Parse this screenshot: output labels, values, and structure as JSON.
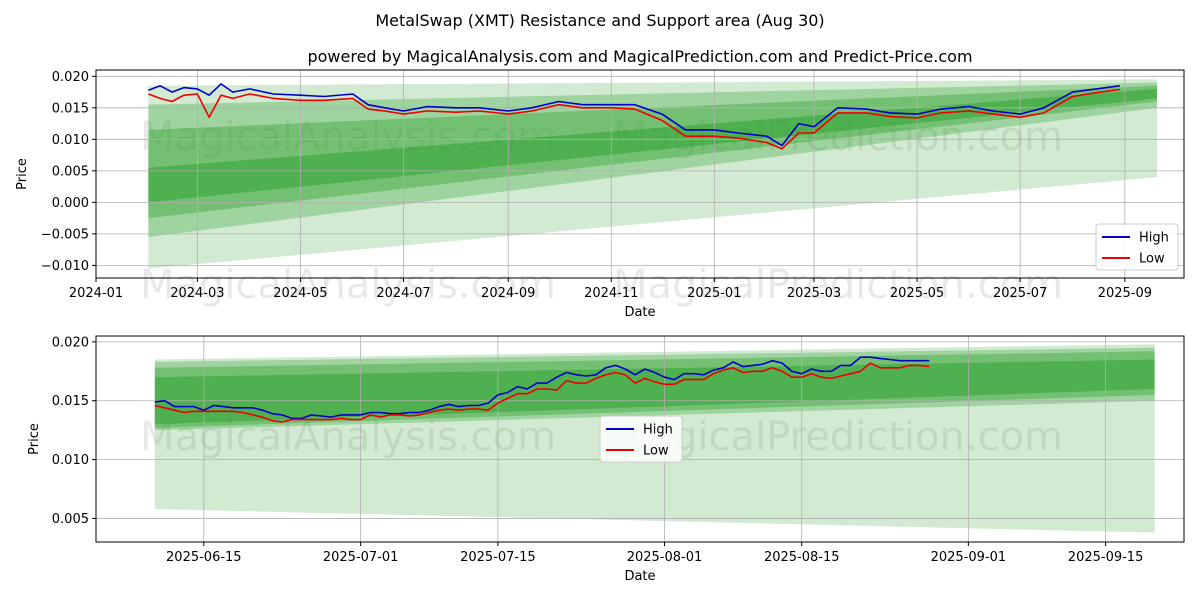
{
  "title": "MetalSwap (XMT) Resistance and Support area (Aug 30)",
  "subtitle": "powered by MagicalAnalysis.com and MagicalPrediction.com and Predict-Price.com",
  "watermarks": [
    "MagicalAnalysis.com",
    "MagicalPrediction.com"
  ],
  "colors": {
    "high": "#0000cc",
    "low": "#ee0000",
    "band": "#2ca02c",
    "grid": "#b0b0b0"
  },
  "chart_data": [
    {
      "type": "line",
      "xlabel": "Date",
      "ylabel": "Price",
      "ylim": [
        -0.012,
        0.021
      ],
      "xlim": [
        "2024-01-01",
        "2025-10-06"
      ],
      "yticks": [
        -0.01,
        -0.005,
        0.0,
        0.005,
        0.01,
        0.015,
        0.02
      ],
      "ytick_labels": [
        "−0.010",
        "−0.005",
        "0.000",
        "0.005",
        "0.010",
        "0.015",
        "0.020"
      ],
      "xticks": [
        "2024-01-01",
        "2024-03-01",
        "2024-05-01",
        "2024-07-01",
        "2024-09-01",
        "2024-11-01",
        "2025-01-01",
        "2025-03-01",
        "2025-05-01",
        "2025-07-01",
        "2025-09-01"
      ],
      "xtick_labels": [
        "2024-01",
        "2024-03",
        "2024-05",
        "2024-07",
        "2024-09",
        "2024-11",
        "2025-01",
        "2025-03",
        "2025-05",
        "2025-07",
        "2025-09"
      ],
      "grid": true,
      "legend": "lower right",
      "series": [
        {
          "name": "High",
          "x": [
            "2024-02-01",
            "2024-02-08",
            "2024-02-15",
            "2024-02-22",
            "2024-03-01",
            "2024-03-08",
            "2024-03-15",
            "2024-03-22",
            "2024-04-01",
            "2024-04-15",
            "2024-05-01",
            "2024-05-15",
            "2024-06-01",
            "2024-06-10",
            "2024-06-20",
            "2024-07-01",
            "2024-07-15",
            "2024-08-01",
            "2024-08-15",
            "2024-09-01",
            "2024-09-15",
            "2024-10-01",
            "2024-10-15",
            "2024-11-01",
            "2024-11-15",
            "2024-12-01",
            "2024-12-15",
            "2025-01-01",
            "2025-01-15",
            "2025-02-01",
            "2025-02-10",
            "2025-02-20",
            "2025-03-01",
            "2025-03-15",
            "2025-04-01",
            "2025-04-15",
            "2025-05-01",
            "2025-05-15",
            "2025-06-01",
            "2025-06-15",
            "2025-07-01",
            "2025-07-15",
            "2025-08-01",
            "2025-08-15",
            "2025-08-29"
          ],
          "values": [
            0.0178,
            0.0185,
            0.0175,
            0.0182,
            0.018,
            0.017,
            0.0188,
            0.0175,
            0.018,
            0.0172,
            0.017,
            0.0168,
            0.0172,
            0.0155,
            0.015,
            0.0145,
            0.0152,
            0.015,
            0.015,
            0.0145,
            0.015,
            0.016,
            0.0155,
            0.0155,
            0.0155,
            0.014,
            0.0115,
            0.0115,
            0.011,
            0.0105,
            0.009,
            0.0125,
            0.012,
            0.015,
            0.0148,
            0.0142,
            0.014,
            0.0148,
            0.0152,
            0.0145,
            0.014,
            0.015,
            0.0175,
            0.018,
            0.0185
          ]
        },
        {
          "name": "Low",
          "x": [
            "2024-02-01",
            "2024-02-08",
            "2024-02-15",
            "2024-02-22",
            "2024-03-01",
            "2024-03-08",
            "2024-03-15",
            "2024-03-22",
            "2024-04-01",
            "2024-04-15",
            "2024-05-01",
            "2024-05-15",
            "2024-06-01",
            "2024-06-10",
            "2024-06-20",
            "2024-07-01",
            "2024-07-15",
            "2024-08-01",
            "2024-08-15",
            "2024-09-01",
            "2024-09-15",
            "2024-10-01",
            "2024-10-15",
            "2024-11-01",
            "2024-11-15",
            "2024-12-01",
            "2024-12-15",
            "2025-01-01",
            "2025-01-15",
            "2025-02-01",
            "2025-02-10",
            "2025-02-20",
            "2025-03-01",
            "2025-03-15",
            "2025-04-01",
            "2025-04-15",
            "2025-05-01",
            "2025-05-15",
            "2025-06-01",
            "2025-06-15",
            "2025-07-01",
            "2025-07-15",
            "2025-08-01",
            "2025-08-15",
            "2025-08-29"
          ],
          "values": [
            0.0172,
            0.0165,
            0.016,
            0.017,
            0.0172,
            0.0135,
            0.017,
            0.0165,
            0.0172,
            0.0165,
            0.0162,
            0.0162,
            0.0165,
            0.0148,
            0.0145,
            0.014,
            0.0145,
            0.0143,
            0.0145,
            0.014,
            0.0145,
            0.0155,
            0.015,
            0.015,
            0.0148,
            0.013,
            0.0105,
            0.0105,
            0.0102,
            0.0095,
            0.0085,
            0.011,
            0.011,
            0.0142,
            0.0142,
            0.0136,
            0.0134,
            0.0142,
            0.0145,
            0.014,
            0.0135,
            0.0142,
            0.0168,
            0.0174,
            0.0179
          ]
        }
      ],
      "support_resistance_bands": [
        {
          "x": [
            "2024-02-01",
            "2025-09-20"
          ],
          "lower": [
            -0.0105,
            0.004
          ],
          "upper": [
            0.0185,
            0.0195
          ]
        },
        {
          "x": [
            "2024-02-01",
            "2025-09-20"
          ],
          "lower": [
            -0.0055,
            0.015
          ],
          "upper": [
            0.0155,
            0.019
          ]
        },
        {
          "x": [
            "2024-02-01",
            "2025-09-20"
          ],
          "lower": [
            -0.0025,
            0.016
          ],
          "upper": [
            0.0115,
            0.0185
          ]
        },
        {
          "x": [
            "2024-02-01",
            "2025-09-20"
          ],
          "lower": [
            0.0,
            0.0165
          ],
          "upper": [
            0.0055,
            0.018
          ]
        }
      ]
    },
    {
      "type": "line",
      "xlabel": "Date",
      "ylabel": "Price",
      "ylim": [
        0.003,
        0.0205
      ],
      "xlim": [
        "2025-06-04",
        "2025-09-23"
      ],
      "yticks": [
        0.005,
        0.01,
        0.015,
        0.02
      ],
      "ytick_labels": [
        "0.005",
        "0.010",
        "0.015",
        "0.020"
      ],
      "xticks": [
        "2025-06-15",
        "2025-07-01",
        "2025-07-15",
        "2025-08-01",
        "2025-08-15",
        "2025-09-01",
        "2025-09-15"
      ],
      "xtick_labels": [
        "2025-06-15",
        "2025-07-01",
        "2025-07-15",
        "2025-08-01",
        "2025-08-15",
        "2025-09-01",
        "2025-09-15"
      ],
      "grid": true,
      "legend": "center",
      "series": [
        {
          "name": "High",
          "x": [
            "2025-06-10",
            "2025-06-11",
            "2025-06-12",
            "2025-06-13",
            "2025-06-14",
            "2025-06-15",
            "2025-06-16",
            "2025-06-17",
            "2025-06-18",
            "2025-06-19",
            "2025-06-20",
            "2025-06-21",
            "2025-06-22",
            "2025-06-23",
            "2025-06-24",
            "2025-06-25",
            "2025-06-26",
            "2025-06-27",
            "2025-06-28",
            "2025-06-29",
            "2025-06-30",
            "2025-07-01",
            "2025-07-02",
            "2025-07-03",
            "2025-07-04",
            "2025-07-05",
            "2025-07-06",
            "2025-07-07",
            "2025-07-08",
            "2025-07-09",
            "2025-07-10",
            "2025-07-11",
            "2025-07-12",
            "2025-07-13",
            "2025-07-14",
            "2025-07-15",
            "2025-07-16",
            "2025-07-17",
            "2025-07-18",
            "2025-07-19",
            "2025-07-20",
            "2025-07-21",
            "2025-07-22",
            "2025-07-23",
            "2025-07-24",
            "2025-07-25",
            "2025-07-26",
            "2025-07-27",
            "2025-07-28",
            "2025-07-29",
            "2025-07-30",
            "2025-07-31",
            "2025-08-01",
            "2025-08-02",
            "2025-08-03",
            "2025-08-04",
            "2025-08-05",
            "2025-08-06",
            "2025-08-07",
            "2025-08-08",
            "2025-08-09",
            "2025-08-10",
            "2025-08-11",
            "2025-08-12",
            "2025-08-13",
            "2025-08-14",
            "2025-08-15",
            "2025-08-16",
            "2025-08-17",
            "2025-08-18",
            "2025-08-19",
            "2025-08-20",
            "2025-08-21",
            "2025-08-22",
            "2025-08-23",
            "2025-08-24",
            "2025-08-25",
            "2025-08-26",
            "2025-08-27",
            "2025-08-28"
          ],
          "values": [
            0.0149,
            0.015,
            0.0145,
            0.0145,
            0.0145,
            0.0142,
            0.0146,
            0.0145,
            0.0144,
            0.0144,
            0.0144,
            0.0142,
            0.0139,
            0.0138,
            0.0135,
            0.0135,
            0.0138,
            0.0137,
            0.0136,
            0.0138,
            0.0138,
            0.0138,
            0.014,
            0.014,
            0.0139,
            0.0139,
            0.014,
            0.014,
            0.0142,
            0.0145,
            0.0147,
            0.0145,
            0.0146,
            0.0146,
            0.0148,
            0.0155,
            0.0157,
            0.0162,
            0.016,
            0.0165,
            0.0165,
            0.017,
            0.0174,
            0.0172,
            0.0171,
            0.0172,
            0.0178,
            0.018,
            0.0177,
            0.0172,
            0.0177,
            0.0174,
            0.017,
            0.0168,
            0.0173,
            0.0173,
            0.0172,
            0.0176,
            0.0178,
            0.0183,
            0.0179,
            0.018,
            0.0181,
            0.0184,
            0.0182,
            0.0175,
            0.0173,
            0.0177,
            0.0175,
            0.0175,
            0.018,
            0.018,
            0.0187,
            0.0187,
            0.0186,
            0.0185,
            0.0184,
            0.0184,
            0.0184,
            0.0184
          ]
        },
        {
          "name": "Low",
          "x": [
            "2025-06-10",
            "2025-06-11",
            "2025-06-12",
            "2025-06-13",
            "2025-06-14",
            "2025-06-15",
            "2025-06-16",
            "2025-06-17",
            "2025-06-18",
            "2025-06-19",
            "2025-06-20",
            "2025-06-21",
            "2025-06-22",
            "2025-06-23",
            "2025-06-24",
            "2025-06-25",
            "2025-06-26",
            "2025-06-27",
            "2025-06-28",
            "2025-06-29",
            "2025-06-30",
            "2025-07-01",
            "2025-07-02",
            "2025-07-03",
            "2025-07-04",
            "2025-07-05",
            "2025-07-06",
            "2025-07-07",
            "2025-07-08",
            "2025-07-09",
            "2025-07-10",
            "2025-07-11",
            "2025-07-12",
            "2025-07-13",
            "2025-07-14",
            "2025-07-15",
            "2025-07-16",
            "2025-07-17",
            "2025-07-18",
            "2025-07-19",
            "2025-07-20",
            "2025-07-21",
            "2025-07-22",
            "2025-07-23",
            "2025-07-24",
            "2025-07-25",
            "2025-07-26",
            "2025-07-27",
            "2025-07-28",
            "2025-07-29",
            "2025-07-30",
            "2025-07-31",
            "2025-08-01",
            "2025-08-02",
            "2025-08-03",
            "2025-08-04",
            "2025-08-05",
            "2025-08-06",
            "2025-08-07",
            "2025-08-08",
            "2025-08-09",
            "2025-08-10",
            "2025-08-11",
            "2025-08-12",
            "2025-08-13",
            "2025-08-14",
            "2025-08-15",
            "2025-08-16",
            "2025-08-17",
            "2025-08-18",
            "2025-08-19",
            "2025-08-20",
            "2025-08-21",
            "2025-08-22",
            "2025-08-23",
            "2025-08-24",
            "2025-08-25",
            "2025-08-26",
            "2025-08-27",
            "2025-08-28"
          ],
          "values": [
            0.0146,
            0.0144,
            0.0142,
            0.014,
            0.0141,
            0.0141,
            0.0141,
            0.0141,
            0.0141,
            0.014,
            0.0138,
            0.0136,
            0.0133,
            0.0132,
            0.0134,
            0.0134,
            0.0134,
            0.0134,
            0.0134,
            0.0135,
            0.0134,
            0.0134,
            0.0138,
            0.0136,
            0.0138,
            0.0138,
            0.0137,
            0.0138,
            0.014,
            0.0142,
            0.0143,
            0.0142,
            0.0143,
            0.0143,
            0.0142,
            0.0148,
            0.0152,
            0.0156,
            0.0156,
            0.016,
            0.016,
            0.0159,
            0.0167,
            0.0165,
            0.0165,
            0.0169,
            0.0172,
            0.0174,
            0.0172,
            0.0165,
            0.0169,
            0.0166,
            0.0164,
            0.0164,
            0.0168,
            0.0168,
            0.0168,
            0.0173,
            0.0176,
            0.0178,
            0.0174,
            0.0175,
            0.0175,
            0.0178,
            0.0175,
            0.017,
            0.017,
            0.0173,
            0.017,
            0.0169,
            0.0171,
            0.0173,
            0.0175,
            0.0182,
            0.0178,
            0.0178,
            0.0178,
            0.018,
            0.018,
            0.0179
          ]
        }
      ],
      "support_resistance_bands": [
        {
          "x": [
            "2025-06-10",
            "2025-09-20"
          ],
          "lower": [
            0.0058,
            0.0038
          ],
          "upper": [
            0.0185,
            0.0198
          ]
        },
        {
          "x": [
            "2025-06-10",
            "2025-09-20"
          ],
          "lower": [
            0.0125,
            0.015
          ],
          "upper": [
            0.0183,
            0.0195
          ]
        },
        {
          "x": [
            "2025-06-10",
            "2025-09-20"
          ],
          "lower": [
            0.0127,
            0.0155
          ],
          "upper": [
            0.0178,
            0.0192
          ]
        },
        {
          "x": [
            "2025-06-10",
            "2025-09-20"
          ],
          "lower": [
            0.013,
            0.016
          ],
          "upper": [
            0.017,
            0.0185
          ]
        }
      ]
    }
  ]
}
